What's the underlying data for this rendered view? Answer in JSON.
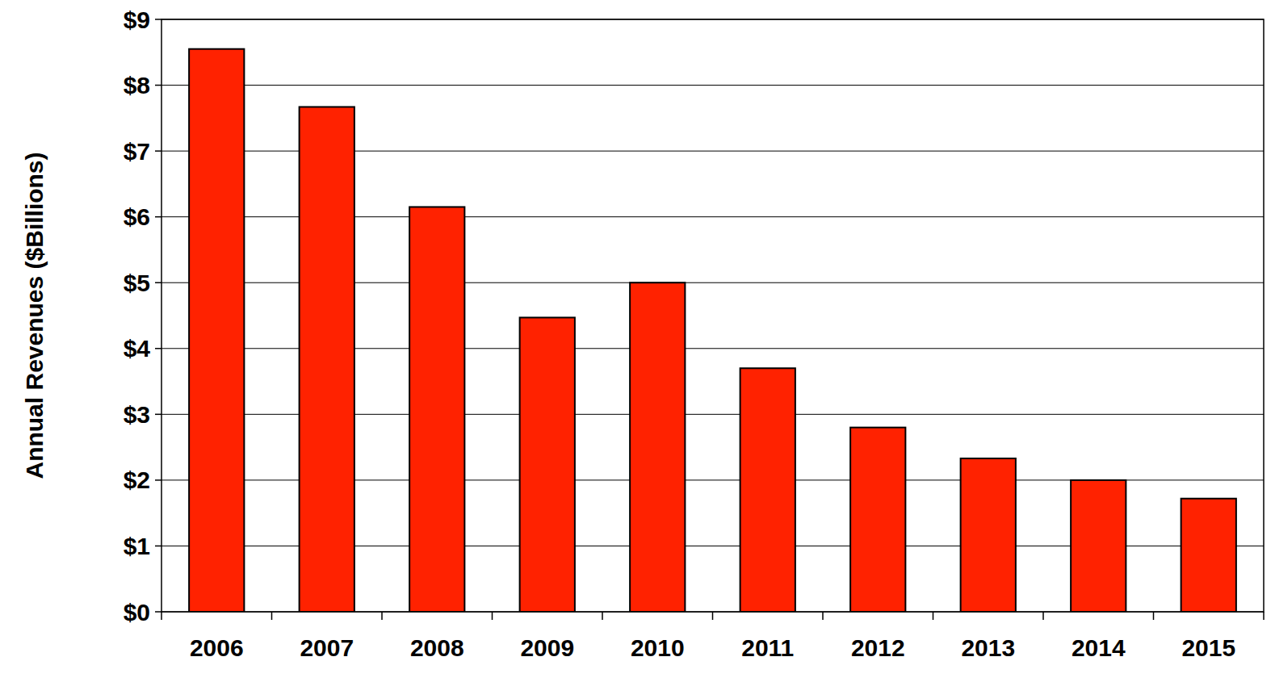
{
  "chart_data": {
    "type": "bar",
    "y_label": "Annual Revenues ($Billions)",
    "categories": [
      "2006",
      "2007",
      "2008",
      "2009",
      "2010",
      "2011",
      "2012",
      "2013",
      "2014",
      "2015"
    ],
    "values": [
      8.55,
      7.67,
      6.15,
      4.47,
      5.0,
      3.7,
      2.8,
      2.33,
      2.0,
      1.72
    ],
    "color": "#ff2200",
    "ylim": [
      0,
      9
    ],
    "yticks": [
      {
        "value": 0,
        "label": "$0"
      },
      {
        "value": 1,
        "label": "$1"
      },
      {
        "value": 2,
        "label": "$2"
      },
      {
        "value": 3,
        "label": "$3"
      },
      {
        "value": 4,
        "label": "$4"
      },
      {
        "value": 5,
        "label": "$5"
      },
      {
        "value": 6,
        "label": "$6"
      },
      {
        "value": 7,
        "label": "$7"
      },
      {
        "value": 8,
        "label": "$8"
      },
      {
        "value": 9,
        "label": "$9"
      }
    ],
    "grid": true
  }
}
